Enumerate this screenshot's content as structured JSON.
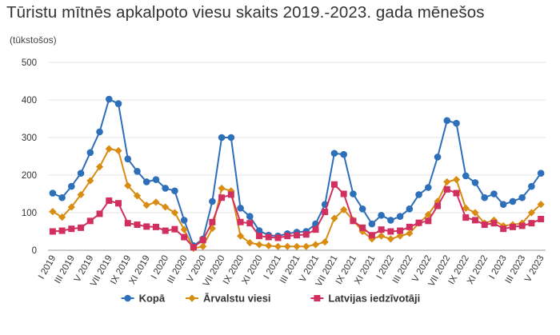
{
  "title": "Tūristu mītnēs apkalpoto viesu skaits 2019.-2023. gada mēnešos",
  "unit": "(tūkstošos)",
  "chart_data": {
    "type": "line",
    "ylim": [
      0,
      500
    ],
    "yticks": [
      0,
      100,
      200,
      300,
      400,
      500
    ],
    "grid": true,
    "legend_position": "bottom",
    "x": [
      "I 2019",
      "II 2019",
      "III 2019",
      "IV 2019",
      "V 2019",
      "VI 2019",
      "VII 2019",
      "VIII 2019",
      "IX 2019",
      "X 2019",
      "XI 2019",
      "XII 2019",
      "I 2020",
      "II 2020",
      "III 2020",
      "IV 2020",
      "V 2020",
      "VI 2020",
      "VII 2020",
      "VIII 2020",
      "IX 2020",
      "X 2020",
      "XI 2020",
      "XII 2020",
      "I 2021",
      "II 2021",
      "III 2021",
      "IV 2021",
      "V 2021",
      "VI 2021",
      "VII 2021",
      "VIII 2021",
      "IX 2021",
      "X 2021",
      "XI 2021",
      "XII 2021",
      "I 2022",
      "II 2022",
      "III 2022",
      "IV 2022",
      "V 2022",
      "VI 2022",
      "VII 2022",
      "VIII 2022",
      "IX 2022",
      "X 2022",
      "XI 2022",
      "XII 2022",
      "I 2023",
      "II 2023",
      "III 2023",
      "IV 2023",
      "V 2023"
    ],
    "xtick_labels": [
      "I 2019",
      "III 2019",
      "V 2019",
      "VII 2019",
      "IX 2019",
      "XI 2019",
      "I 2020",
      "III 2020",
      "V 2020",
      "VII 2020",
      "IX 2020",
      "XI 2020",
      "I 2021",
      "III 2021",
      "V 2021",
      "VII 2021",
      "IX 2021",
      "XI 2021",
      "I 2022",
      "III 2022",
      "V 2022",
      "VII 2022",
      "IX 2022",
      "XI 2022",
      "I 2023",
      "III 2023",
      "V 2023"
    ],
    "series": [
      {
        "name": "Kopā",
        "color": "#2e6fba",
        "marker": "circle",
        "values": [
          152,
          140,
          170,
          205,
          260,
          315,
          402,
          390,
          243,
          210,
          182,
          188,
          165,
          158,
          80,
          12,
          30,
          130,
          300,
          300,
          112,
          90,
          52,
          40,
          38,
          44,
          48,
          50,
          70,
          122,
          258,
          255,
          150,
          110,
          70,
          93,
          80,
          90,
          110,
          148,
          167,
          248,
          345,
          338,
          198,
          180,
          140,
          150,
          122,
          130,
          140,
          170,
          205
        ]
      },
      {
        "name": "Ārvalstu viesi",
        "color": "#d98c12",
        "marker": "diamond",
        "values": [
          103,
          88,
          115,
          148,
          185,
          222,
          270,
          265,
          172,
          145,
          120,
          128,
          115,
          100,
          55,
          5,
          10,
          58,
          165,
          158,
          38,
          20,
          15,
          12,
          10,
          10,
          10,
          10,
          15,
          22,
          85,
          108,
          80,
          50,
          30,
          38,
          30,
          38,
          45,
          72,
          95,
          130,
          182,
          188,
          112,
          100,
          72,
          80,
          65,
          68,
          72,
          100,
          122
        ]
      },
      {
        "name": "Latvijas iedzīvotāji",
        "color": "#d12f5f",
        "marker": "square",
        "values": [
          50,
          52,
          57,
          60,
          78,
          97,
          132,
          125,
          72,
          68,
          63,
          62,
          52,
          56,
          35,
          8,
          27,
          75,
          140,
          148,
          75,
          72,
          38,
          35,
          33,
          38,
          40,
          42,
          55,
          102,
          175,
          150,
          78,
          60,
          40,
          55,
          50,
          52,
          62,
          73,
          78,
          118,
          162,
          152,
          87,
          80,
          68,
          72,
          57,
          62,
          65,
          72,
          83
        ]
      }
    ]
  }
}
